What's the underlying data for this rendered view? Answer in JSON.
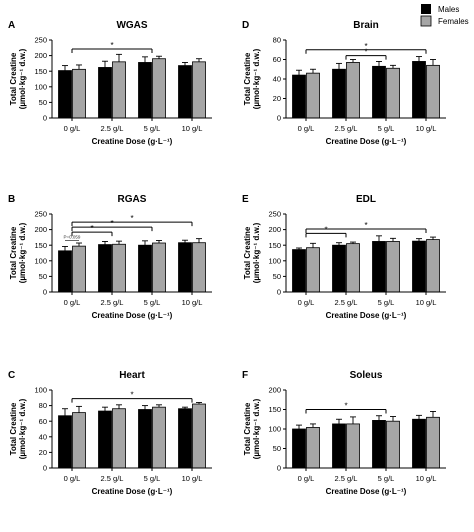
{
  "legend": {
    "items": [
      {
        "label": "Males",
        "color": "#000000"
      },
      {
        "label": "Females",
        "color": "#a6a6a6"
      }
    ]
  },
  "chart_data": [
    {
      "type": "bar",
      "letter": "A",
      "title": "WGAS",
      "categories": [
        "0 g/L",
        "2.5 g/L",
        "5 g/L",
        "10 g/L"
      ],
      "series": [
        {
          "name": "Males",
          "values": [
            152,
            162,
            178,
            168
          ],
          "errors": [
            16,
            20,
            18,
            10
          ]
        },
        {
          "name": "Females",
          "values": [
            156,
            180,
            190,
            180
          ],
          "errors": [
            14,
            24,
            8,
            10
          ]
        }
      ],
      "xlabel": "Creatine Dose (g·L⁻¹)",
      "ylabel": [
        "Total Creatine",
        "(µmol·kg⁻¹ d.w.)"
      ],
      "ylim": [
        0,
        250
      ],
      "yticks": [
        "0",
        "50",
        "100",
        "150",
        "200",
        "250"
      ],
      "significance": [
        {
          "from": 0,
          "to": 2,
          "level": 221,
          "label": "*"
        }
      ]
    },
    {
      "type": "bar",
      "letter": "B",
      "title": "RGAS",
      "categories": [
        "0 g/L",
        "2.5 g/L",
        "5 g/L",
        "10 g/L"
      ],
      "series": [
        {
          "name": "Males",
          "values": [
            132,
            152,
            150,
            158
          ],
          "errors": [
            14,
            10,
            14,
            8
          ]
        },
        {
          "name": "Females",
          "values": [
            147,
            153,
            157,
            158
          ],
          "errors": [
            10,
            10,
            8,
            13
          ]
        }
      ],
      "xlabel": "Creatine Dose (g·L⁻¹)",
      "ylabel": [
        "Total Creatine",
        "(µmol·kg⁻¹ d.w.)"
      ],
      "ylim": [
        0,
        250
      ],
      "yticks": [
        "0",
        "50",
        "100",
        "150",
        "200",
        "250"
      ],
      "significance": [
        {
          "from": 0,
          "to": 3,
          "level": 224,
          "label": "*"
        },
        {
          "from": 0,
          "to": 2,
          "level": 208,
          "label": "*"
        },
        {
          "from": 0,
          "to": 1,
          "level": 192,
          "label": "*"
        }
      ],
      "annotation": "P=0.059"
    },
    {
      "type": "bar",
      "letter": "C",
      "title": "Heart",
      "categories": [
        "0 g/L",
        "2.5 g/L",
        "5 g/L",
        "10 g/L"
      ],
      "series": [
        {
          "name": "Males",
          "values": [
            67,
            73,
            75,
            76
          ],
          "errors": [
            9,
            5,
            5,
            2
          ]
        },
        {
          "name": "Females",
          "values": [
            71,
            76,
            78,
            82
          ],
          "errors": [
            8,
            5,
            3,
            2
          ]
        }
      ],
      "xlabel": "Creatine Dose (g·L⁻¹)",
      "ylabel": [
        "Total Creatine",
        "(µmol·kg⁻¹ d.w.)"
      ],
      "ylim": [
        0,
        100
      ],
      "yticks": [
        "0",
        "20",
        "40",
        "60",
        "80",
        "100"
      ],
      "significance": [
        {
          "from": 0,
          "to": 3,
          "level": 89,
          "label": "*"
        }
      ]
    },
    {
      "type": "bar",
      "letter": "D",
      "title": "Brain",
      "categories": [
        "0 g/L",
        "2.5 g/L",
        "5 g/L",
        "10 g/L"
      ],
      "series": [
        {
          "name": "Males",
          "values": [
            44,
            50,
            53,
            58
          ],
          "errors": [
            5,
            6,
            5,
            5
          ]
        },
        {
          "name": "Females",
          "values": [
            46,
            57,
            51,
            54
          ],
          "errors": [
            4,
            3,
            3,
            6
          ]
        }
      ],
      "xlabel": "Creatine Dose (g·L⁻¹)",
      "ylabel": [
        "Total Creatine",
        "(µmol·kg⁻¹ d.w.)"
      ],
      "ylim": [
        0,
        80
      ],
      "yticks": [
        "0",
        "20",
        "40",
        "60",
        "80"
      ],
      "significance": [
        {
          "from": 0,
          "to": 3,
          "level": 70,
          "label": "*"
        },
        {
          "from": 1,
          "to": 2,
          "level": 64,
          "label": "*"
        }
      ]
    },
    {
      "type": "bar",
      "letter": "E",
      "title": "EDL",
      "categories": [
        "0 g/L",
        "2.5 g/L",
        "5 g/L",
        "10 g/L"
      ],
      "series": [
        {
          "name": "Males",
          "values": [
            136,
            150,
            162,
            163
          ],
          "errors": [
            5,
            8,
            18,
            8
          ]
        },
        {
          "name": "Females",
          "values": [
            142,
            155,
            162,
            168
          ],
          "errors": [
            14,
            5,
            10,
            8
          ]
        }
      ],
      "xlabel": "Creatine Dose (g·L⁻¹)",
      "ylabel": [
        "Total Creatine",
        "(µmol·kg⁻¹ d.w.)"
      ],
      "ylim": [
        0,
        250
      ],
      "yticks": [
        "0",
        "50",
        "100",
        "150",
        "200",
        "250"
      ],
      "significance": [
        {
          "from": 0,
          "to": 1,
          "level": 188,
          "label": "*"
        },
        {
          "from": 0,
          "to": 3,
          "level": 202,
          "label": "*"
        }
      ]
    },
    {
      "type": "bar",
      "letter": "F",
      "title": "Soleus",
      "categories": [
        "0 g/L",
        "2.5 g/L",
        "5 g/L",
        "10 g/L"
      ],
      "series": [
        {
          "name": "Males",
          "values": [
            100,
            113,
            122,
            125
          ],
          "errors": [
            10,
            12,
            12,
            10
          ]
        },
        {
          "name": "Females",
          "values": [
            104,
            113,
            120,
            130
          ],
          "errors": [
            9,
            18,
            12,
            15
          ]
        }
      ],
      "xlabel": "Creatine Dose (g·L⁻¹)",
      "ylabel": [
        "Total Creatine",
        "(µmol·kg⁻¹ d.w.)"
      ],
      "ylim": [
        0,
        200
      ],
      "yticks": [
        "0",
        "50",
        "100",
        "150",
        "200"
      ],
      "significance": [
        {
          "from": 0,
          "to": 2,
          "level": 150,
          "label": "*"
        }
      ]
    }
  ]
}
